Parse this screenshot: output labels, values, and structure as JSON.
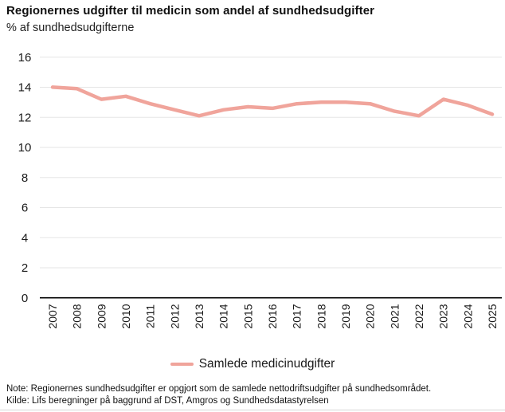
{
  "header": {
    "title": "Regionernes udgifter til medicin som andel af sundhedsudgifter",
    "subtitle": "% af sundhedsudgifterne"
  },
  "chart_data": {
    "type": "line",
    "title": "Regionernes udgifter til medicin som andel af sundhedsudgifter",
    "ylabel": "% af sundhedsudgifterne",
    "xlabel": "",
    "x": [
      2007,
      2008,
      2009,
      2010,
      2011,
      2012,
      2013,
      2014,
      2015,
      2016,
      2017,
      2018,
      2019,
      2020,
      2021,
      2022,
      2023,
      2024,
      2025
    ],
    "series": [
      {
        "name": "Samlede medicinudgifter",
        "values": [
          14.0,
          13.9,
          13.2,
          13.4,
          12.9,
          12.5,
          12.1,
          12.5,
          12.7,
          12.6,
          12.9,
          13.0,
          13.0,
          12.9,
          12.4,
          12.1,
          13.2,
          12.8,
          12.2
        ],
        "color": "#F0A49B"
      }
    ],
    "ylim": [
      0,
      16
    ],
    "yticks": [
      0,
      2,
      4,
      6,
      8,
      10,
      12,
      14,
      16
    ],
    "grid": true,
    "legend_position": "bottom"
  },
  "footer": {
    "note": "Note: Regionernes sundhedsudgifter er opgjort som de samlede nettodriftsudgifter på sundhedsområdet.",
    "source": "Kilde: Lifs beregninger på baggrund af DST, Amgros og Sundhedsdatastyrelsen"
  },
  "colors": {
    "line": "#F0A49B",
    "grid": "#E5E5E5",
    "axis": "#000000",
    "text": "#1A1A1A"
  }
}
